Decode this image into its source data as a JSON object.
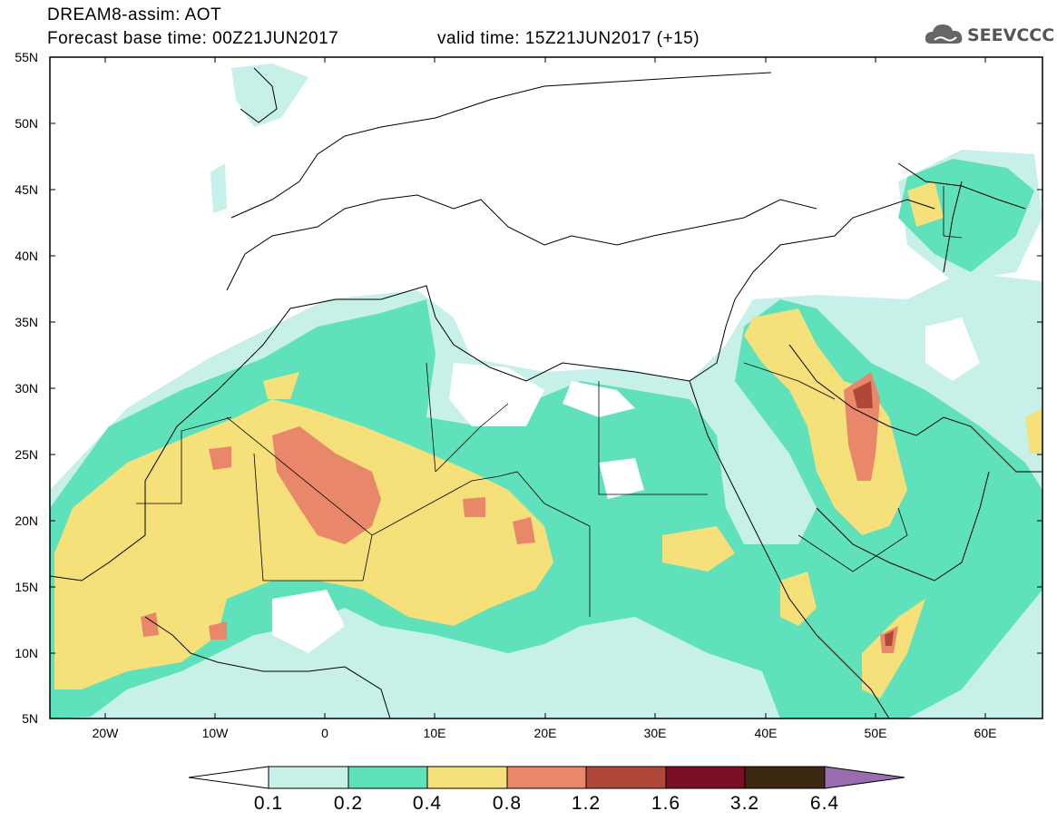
{
  "header": {
    "line1": "DREAM8-assim: AOT",
    "line2_left": "Forecast base time: 00Z21JUN2017",
    "line2_right": "valid time: 15Z21JUN2017 (+15)"
  },
  "logo": {
    "text": "SEEVCCC",
    "icon": "cloud-logo-icon"
  },
  "map": {
    "projection": "lat-lon",
    "lon_range": [
      -25,
      65
    ],
    "lat_range": [
      5,
      55
    ],
    "lat_labels": [
      "55N",
      "50N",
      "45N",
      "40N",
      "35N",
      "30N",
      "25N",
      "20N",
      "15N",
      "10N",
      "5N"
    ],
    "lon_labels": [
      "20W",
      "10W",
      "0",
      "10E",
      "20E",
      "30E",
      "40E",
      "50E",
      "60E"
    ]
  },
  "colorbar": {
    "labels": [
      "0.1",
      "0.2",
      "0.4",
      "0.8",
      "1.2",
      "1.6",
      "3.2",
      "6.4"
    ],
    "colors": [
      "#c7f0e8",
      "#5fe2bc",
      "#f5e07a",
      "#e8876a",
      "#b0483a",
      "#7a0f25",
      "#3d2812",
      "#9a6db0"
    ]
  }
}
